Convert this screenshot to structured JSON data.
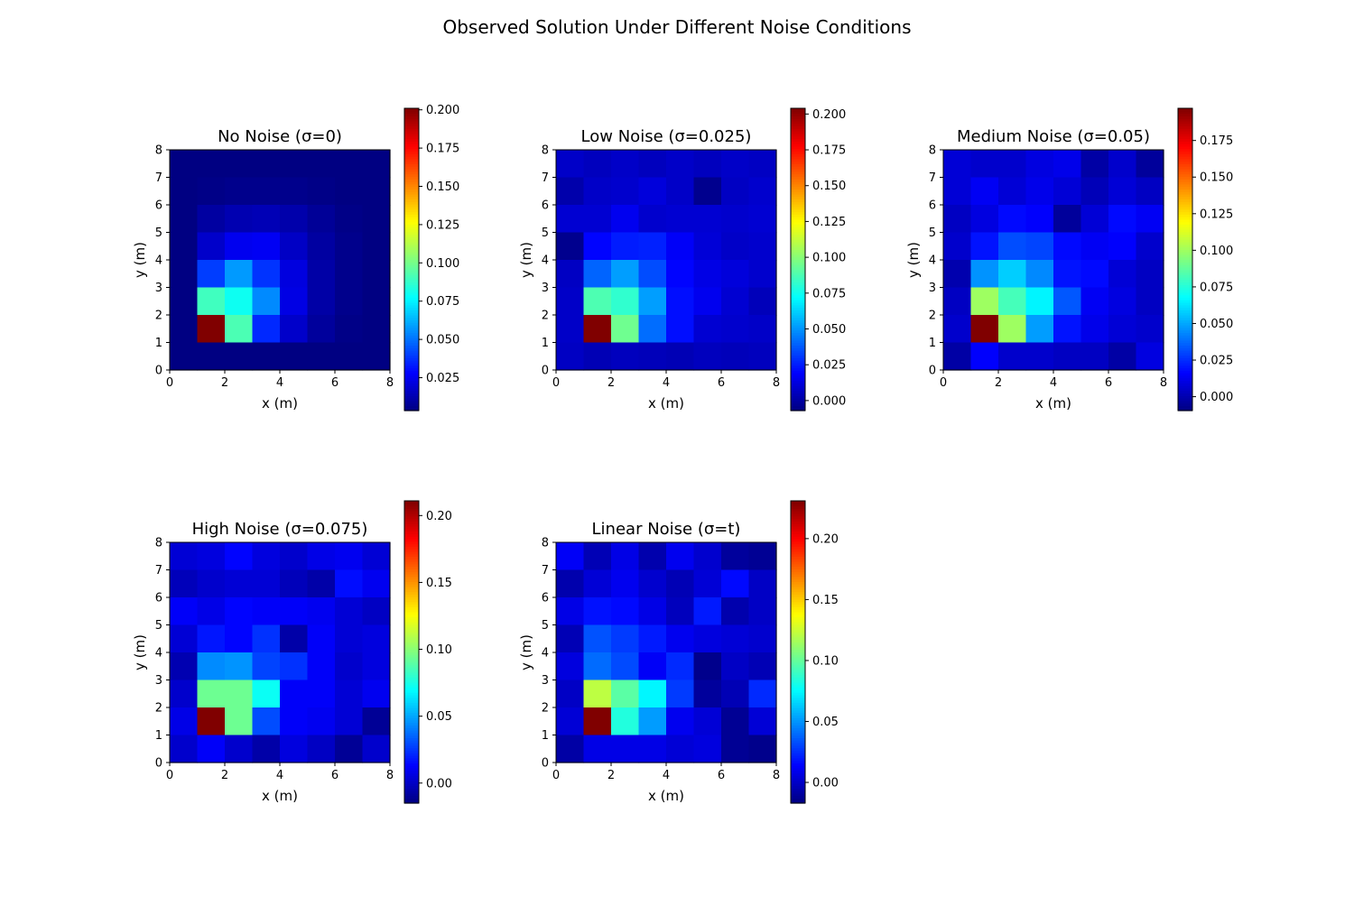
{
  "figure": {
    "title": "Observed Solution Under Different Noise Conditions"
  },
  "colors": {
    "background": "#ffffff",
    "axis": "#000000",
    "colormap": "jet"
  },
  "chart_data": [
    {
      "type": "heatmap",
      "title": "No Noise (σ=0)",
      "xlabel": "x (m)",
      "ylabel": "y (m)",
      "xlim": [
        0,
        8
      ],
      "ylim": [
        0,
        8
      ],
      "xticks": [
        "0",
        "2",
        "4",
        "6",
        "8"
      ],
      "yticks": [
        "0",
        "1",
        "2",
        "3",
        "4",
        "5",
        "6",
        "7",
        "8"
      ],
      "colorbar": {
        "min": 0.0035,
        "max": 0.201,
        "ticks": [
          0.025,
          0.05,
          0.075,
          0.1,
          0.125,
          0.15,
          0.175,
          0.2
        ],
        "ticklabels": [
          "0.025",
          "0.050",
          "0.075",
          "0.100",
          "0.125",
          "0.150",
          "0.175",
          "0.200"
        ]
      },
      "grid_rows_top_to_bottom": [
        [
          0.004,
          0.004,
          0.004,
          0.004,
          0.004,
          0.004,
          0.004,
          0.004
        ],
        [
          0.004,
          0.005,
          0.006,
          0.006,
          0.006,
          0.005,
          0.004,
          0.004
        ],
        [
          0.004,
          0.01,
          0.013,
          0.014,
          0.012,
          0.008,
          0.005,
          0.004
        ],
        [
          0.004,
          0.018,
          0.025,
          0.026,
          0.017,
          0.01,
          0.006,
          0.004
        ],
        [
          0.004,
          0.04,
          0.058,
          0.038,
          0.022,
          0.011,
          0.006,
          0.004
        ],
        [
          0.004,
          0.09,
          0.08,
          0.055,
          0.023,
          0.011,
          0.006,
          0.004
        ],
        [
          0.004,
          0.201,
          0.092,
          0.036,
          0.018,
          0.009,
          0.005,
          0.004
        ],
        [
          0.004,
          0.004,
          0.004,
          0.004,
          0.004,
          0.004,
          0.004,
          0.004
        ]
      ]
    },
    {
      "type": "heatmap",
      "title": "Low Noise (σ=0.025)",
      "xlabel": "x (m)",
      "ylabel": "y (m)",
      "xlim": [
        0,
        8
      ],
      "ylim": [
        0,
        8
      ],
      "xticks": [
        "0",
        "2",
        "4",
        "6",
        "8"
      ],
      "yticks": [
        "0",
        "1",
        "2",
        "3",
        "4",
        "5",
        "6",
        "7",
        "8"
      ],
      "colorbar": {
        "min": -0.007,
        "max": 0.204,
        "ticks": [
          0.0,
          0.025,
          0.05,
          0.075,
          0.1,
          0.125,
          0.15,
          0.175,
          0.2
        ],
        "ticklabels": [
          "0.000",
          "0.025",
          "0.050",
          "0.075",
          "0.100",
          "0.125",
          "0.150",
          "0.175",
          "0.200"
        ]
      },
      "grid_rows_top_to_bottom": [
        [
          0.008,
          0.006,
          0.008,
          0.006,
          0.008,
          0.006,
          0.008,
          0.007
        ],
        [
          0.002,
          0.008,
          0.009,
          0.012,
          0.008,
          -0.004,
          0.007,
          0.009
        ],
        [
          0.01,
          0.01,
          0.016,
          0.009,
          0.01,
          0.01,
          0.009,
          0.01
        ],
        [
          -0.004,
          0.02,
          0.025,
          0.026,
          0.018,
          0.011,
          0.008,
          0.009
        ],
        [
          0.007,
          0.04,
          0.052,
          0.035,
          0.02,
          0.014,
          0.012,
          0.009
        ],
        [
          0.008,
          0.088,
          0.082,
          0.052,
          0.022,
          0.016,
          0.01,
          0.005
        ],
        [
          0.008,
          0.204,
          0.095,
          0.042,
          0.022,
          0.01,
          0.009,
          0.008
        ],
        [
          0.007,
          0.004,
          0.006,
          0.005,
          0.004,
          0.006,
          0.005,
          0.006
        ]
      ]
    },
    {
      "type": "heatmap",
      "title": "Medium Noise (σ=0.05)",
      "xlabel": "x (m)",
      "ylabel": "y (m)",
      "xlim": [
        0,
        8
      ],
      "ylim": [
        0,
        8
      ],
      "xticks": [
        "0",
        "2",
        "4",
        "6",
        "8"
      ],
      "yticks": [
        "0",
        "1",
        "2",
        "3",
        "4",
        "5",
        "6",
        "7",
        "8"
      ],
      "colorbar": {
        "min": -0.0095,
        "max": 0.197,
        "ticks": [
          0.0,
          0.025,
          0.05,
          0.075,
          0.1,
          0.125,
          0.15,
          0.175
        ],
        "ticklabels": [
          "0.000",
          "0.025",
          "0.050",
          "0.075",
          "0.100",
          "0.125",
          "0.150",
          "0.175"
        ]
      },
      "grid_rows_top_to_bottom": [
        [
          0.008,
          0.006,
          0.006,
          0.01,
          0.012,
          -0.002,
          0.006,
          -0.004
        ],
        [
          0.008,
          0.014,
          0.008,
          0.012,
          0.008,
          0.002,
          0.008,
          0.004
        ],
        [
          0.004,
          0.01,
          0.018,
          0.016,
          -0.004,
          0.008,
          0.018,
          0.014
        ],
        [
          0.006,
          0.02,
          0.032,
          0.03,
          0.018,
          0.014,
          0.016,
          0.006
        ],
        [
          0.0,
          0.046,
          0.058,
          0.044,
          0.02,
          0.018,
          0.008,
          0.004
        ],
        [
          0.004,
          0.1,
          0.082,
          0.066,
          0.034,
          0.014,
          0.01,
          0.004
        ],
        [
          0.006,
          0.197,
          0.1,
          0.048,
          0.02,
          0.012,
          0.008,
          0.006
        ],
        [
          -0.002,
          0.016,
          0.006,
          0.006,
          0.004,
          0.004,
          -0.002,
          0.01
        ]
      ]
    },
    {
      "type": "heatmap",
      "title": "High Noise (σ=0.075)",
      "xlabel": "x (m)",
      "ylabel": "y (m)",
      "xlim": [
        0,
        8
      ],
      "ylim": [
        0,
        8
      ],
      "xticks": [
        "0",
        "2",
        "4",
        "6",
        "8"
      ],
      "yticks": [
        "0",
        "1",
        "2",
        "3",
        "4",
        "5",
        "6",
        "7",
        "8"
      ],
      "colorbar": {
        "min": -0.015,
        "max": 0.211,
        "ticks": [
          0.0,
          0.05,
          0.1,
          0.15,
          0.2
        ],
        "ticklabels": [
          "0.00",
          "0.05",
          "0.10",
          "0.15",
          "0.20"
        ]
      },
      "grid_rows_top_to_bottom": [
        [
          0.004,
          0.006,
          0.014,
          0.006,
          0.002,
          0.008,
          0.01,
          0.004
        ],
        [
          -0.002,
          0.002,
          0.004,
          0.004,
          -0.002,
          -0.006,
          0.016,
          0.01
        ],
        [
          0.012,
          0.008,
          0.014,
          0.012,
          0.012,
          0.01,
          0.004,
          0.0
        ],
        [
          0.004,
          0.018,
          0.014,
          0.024,
          -0.006,
          0.012,
          0.004,
          0.006
        ],
        [
          -0.004,
          0.044,
          0.046,
          0.028,
          0.024,
          0.012,
          0.002,
          0.006
        ],
        [
          0.002,
          0.094,
          0.094,
          0.072,
          0.012,
          0.012,
          0.004,
          0.01
        ],
        [
          0.008,
          0.211,
          0.094,
          0.03,
          0.012,
          0.01,
          0.004,
          -0.01
        ],
        [
          0.002,
          0.012,
          0.002,
          -0.006,
          0.006,
          0.0,
          -0.01,
          0.002
        ]
      ]
    },
    {
      "type": "heatmap",
      "title": "Linear Noise (σ=t)",
      "xlabel": "x (m)",
      "ylabel": "y (m)",
      "xlim": [
        0,
        8
      ],
      "ylim": [
        0,
        8
      ],
      "xticks": [
        "0",
        "2",
        "4",
        "6",
        "8"
      ],
      "yticks": [
        "0",
        "1",
        "2",
        "3",
        "4",
        "5",
        "6",
        "7",
        "8"
      ],
      "colorbar": {
        "min": -0.017,
        "max": 0.231,
        "ticks": [
          0.0,
          0.05,
          0.1,
          0.15,
          0.2
        ],
        "ticklabels": [
          "0.00",
          "0.05",
          "0.10",
          "0.15",
          "0.20"
        ]
      },
      "grid_rows_top_to_bottom": [
        [
          0.012,
          -0.004,
          0.008,
          -0.006,
          0.01,
          0.002,
          -0.01,
          -0.012
        ],
        [
          -0.006,
          0.004,
          0.01,
          0.002,
          -0.004,
          0.004,
          0.016,
          0.0
        ],
        [
          0.008,
          0.018,
          0.016,
          0.008,
          -0.002,
          0.02,
          -0.006,
          0.0
        ],
        [
          -0.004,
          0.034,
          0.028,
          0.02,
          0.01,
          0.006,
          0.004,
          0.002
        ],
        [
          0.006,
          0.04,
          0.032,
          0.012,
          0.024,
          -0.014,
          0.0,
          -0.004
        ],
        [
          0.0,
          0.122,
          0.098,
          0.074,
          0.028,
          -0.01,
          -0.004,
          0.024
        ],
        [
          0.004,
          0.231,
          0.084,
          0.052,
          0.01,
          0.004,
          -0.012,
          0.004
        ],
        [
          -0.008,
          0.008,
          0.008,
          0.008,
          0.004,
          0.006,
          -0.012,
          -0.014
        ]
      ]
    }
  ]
}
